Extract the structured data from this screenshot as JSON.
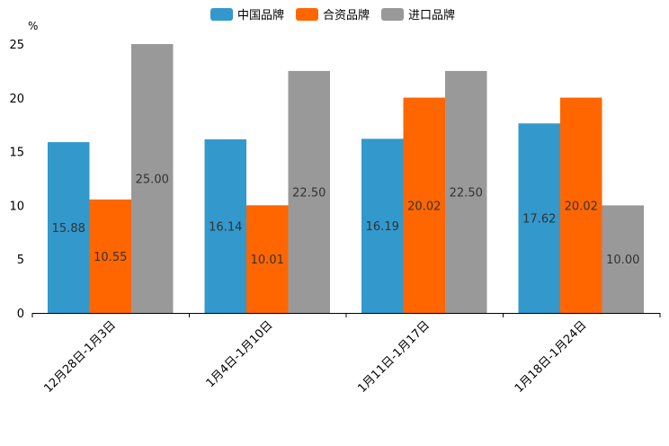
{
  "chart_data": {
    "type": "bar",
    "unit_label": "%",
    "categories": [
      "12月28日-1月3日",
      "1月4日-1月10日",
      "1月11日-1月17日",
      "1月18日-1月24日"
    ],
    "series": [
      {
        "name": "中国品牌",
        "color": "#3398cc",
        "values": [
          15.88,
          16.14,
          16.19,
          17.62
        ],
        "labels": [
          "15.88",
          "16.14",
          "16.19",
          "17.62"
        ]
      },
      {
        "name": "合资品牌",
        "color": "#ff6600",
        "values": [
          10.55,
          10.01,
          20.02,
          20.02
        ],
        "labels": [
          "10.55",
          "10.01",
          "20.02",
          "20.02"
        ]
      },
      {
        "name": "进口品牌",
        "color": "#999999",
        "values": [
          25.0,
          22.5,
          22.5,
          10.0
        ],
        "labels": [
          "25.00",
          "22.50",
          "22.50",
          "10.00"
        ]
      }
    ],
    "ylim": [
      0,
      25
    ],
    "yticks": [
      0,
      5,
      10,
      15,
      20,
      25
    ],
    "legend_position": "top-center",
    "grid": false
  }
}
